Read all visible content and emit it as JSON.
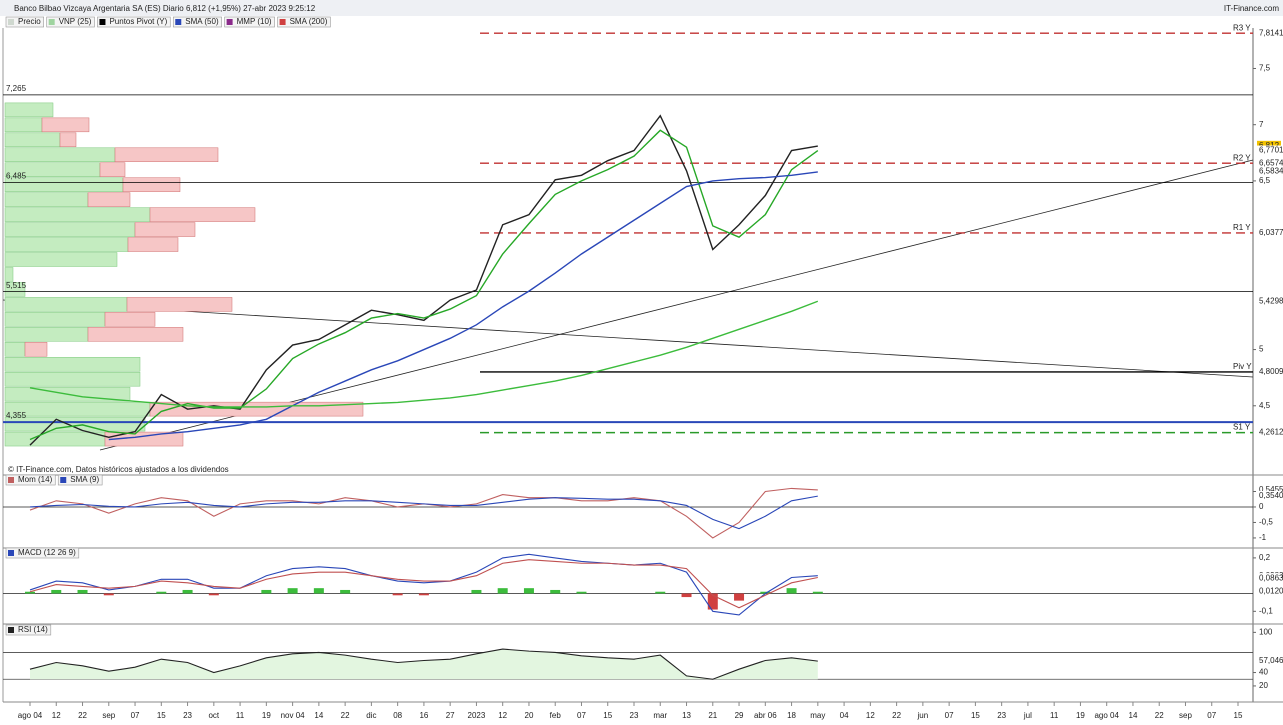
{
  "header": {
    "title": "Banco Bilbao Vizcaya Argentaria SA (ES) Diario 6,812 (+1,95%) 27-abr 2023 9:25:12",
    "brand": "IT-Finance.com",
    "note": "© IT-Finance.com, Datos históricos ajustados a los dividendos"
  },
  "chart_data": [
    {
      "type": "line",
      "categories": [
        "ago 04",
        "12",
        "22",
        "sep",
        "07",
        "15",
        "23",
        "oct",
        "11",
        "19",
        "nov 04",
        "14",
        "22",
        "dic",
        "08",
        "16",
        "27",
        "2023",
        "12",
        "20",
        "feb",
        "07",
        "15",
        "23",
        "mar",
        "13",
        "21",
        "29",
        "abr 06",
        "18",
        "may",
        "04",
        "12",
        "22",
        "jun",
        "07",
        "15",
        "23",
        "jul",
        "11",
        "19",
        "ago 04",
        "14",
        "22",
        "sep",
        "07",
        "15"
      ],
      "legend": [
        {
          "name": "Precio",
          "color": "#cfd8cf"
        },
        {
          "name": "VNP (25)",
          "color": "#9fd49f"
        },
        {
          "name": "Puntos Pivot (Y)",
          "color": "#000000"
        },
        {
          "name": "SMA (50)",
          "color": "#2a47b8"
        },
        {
          "name": "MMP (10)",
          "color": "#8b2a8b"
        },
        {
          "name": "SMA (200)",
          "color": "#d04040"
        }
      ],
      "series": [
        {
          "color": "#222222",
          "values": [
            4.15,
            4.38,
            4.28,
            4.22,
            4.27,
            4.6,
            4.47,
            4.5,
            4.47,
            4.82,
            5.04,
            5.09,
            5.22,
            5.35,
            5.31,
            5.26,
            5.44,
            5.53,
            6.11,
            6.2,
            6.51,
            6.55,
            6.68,
            6.77,
            7.08,
            6.59,
            5.89,
            6.11,
            6.37,
            6.77,
            6.81,
            null,
            null,
            null,
            null,
            null,
            null,
            null,
            null,
            null,
            null,
            null,
            null,
            null,
            null,
            null,
            null
          ]
        },
        {
          "color": "#27a827",
          "values": [
            4.2,
            4.3,
            4.33,
            4.27,
            4.25,
            4.45,
            4.52,
            4.48,
            4.48,
            4.65,
            4.92,
            5.05,
            5.15,
            5.28,
            5.32,
            5.28,
            5.36,
            5.48,
            5.85,
            6.12,
            6.38,
            6.5,
            6.6,
            6.72,
            6.95,
            6.8,
            6.1,
            6.0,
            6.2,
            6.6,
            6.77,
            null,
            null,
            null,
            null,
            null,
            null,
            null,
            null,
            null,
            null,
            null,
            null,
            null,
            null,
            null,
            null
          ]
        },
        {
          "color": "#2a47b8",
          "values": [
            null,
            null,
            null,
            4.2,
            4.22,
            4.25,
            4.27,
            4.3,
            4.33,
            4.38,
            4.5,
            4.62,
            4.72,
            4.82,
            4.9,
            5.0,
            5.1,
            5.22,
            5.38,
            5.52,
            5.68,
            5.85,
            6.0,
            6.15,
            6.3,
            6.45,
            6.5,
            6.52,
            6.53,
            6.55,
            6.58,
            null,
            null,
            null,
            null,
            null,
            null,
            null,
            null,
            null,
            null,
            null,
            null,
            null,
            null,
            null,
            null
          ]
        },
        {
          "color": "#3cbc3c",
          "values": [
            4.66,
            4.62,
            4.58,
            4.56,
            4.54,
            4.52,
            4.5,
            4.49,
            4.49,
            4.49,
            4.5,
            4.5,
            4.51,
            4.52,
            4.53,
            4.55,
            4.57,
            4.6,
            4.64,
            4.68,
            4.72,
            4.77,
            4.83,
            4.89,
            4.95,
            5.02,
            5.1,
            5.18,
            5.26,
            5.34,
            5.43,
            null,
            null,
            null,
            null,
            null,
            null,
            null,
            null,
            null,
            null,
            null,
            null,
            null,
            null,
            null,
            null
          ]
        }
      ],
      "ylim": [
        4.0,
        7.86
      ],
      "yticks": [
        {
          "value": 7.5,
          "label": "7,5"
        },
        7,
        {
          "value": 6.5,
          "label": "6,5"
        },
        5,
        {
          "value": 4.5,
          "label": "4,5"
        }
      ],
      "hlines": [
        {
          "value": 7.265,
          "label": "7,265",
          "color": "#000000"
        },
        {
          "value": 6.485,
          "label": "6,485",
          "color": "#000000"
        },
        {
          "value": 5.515,
          "label": "5,515",
          "color": "#000000"
        },
        {
          "value": 4.355,
          "label": "4,355",
          "color": "#2a47b8"
        }
      ],
      "levels": [
        {
          "name": "R3 Y",
          "value": 7.8141,
          "label": "7,8141",
          "color": "#c03030",
          "dash": true
        },
        {
          "name": "R2 Y",
          "value": 6.6574,
          "label": "6,6574",
          "color": "#c03030",
          "dash": true
        },
        {
          "name": "R1 Y",
          "value": 6.0377,
          "label": "6,0377",
          "color": "#c03030",
          "dash": true
        },
        {
          "name": "Piv Y",
          "value": 4.8009,
          "label": "4,8009",
          "color": "#000000",
          "dash": false
        },
        {
          "name": "S1 Y",
          "value": 4.2612,
          "label": "4,2612",
          "color": "#2a9a2a",
          "dash": true
        }
      ],
      "last_labels": [
        {
          "value": 6.812,
          "label": "6,812",
          "color": "#000000",
          "bg": "#f2c200"
        },
        {
          "value": 6.7701,
          "label": "6,7701",
          "color": "#2a9a2a",
          "bg": "#ffffff"
        },
        {
          "value": 6.5834,
          "label": "6,5834",
          "color": "#2a47b8",
          "bg": "#ffffff"
        },
        {
          "value": 5.4298,
          "label": "5,4298",
          "color": "#2a9a2a",
          "bg": "#ffffff"
        }
      ],
      "volume_profile": {
        "green": [
          48,
          37,
          55,
          110,
          95,
          118,
          83,
          145,
          130,
          123,
          112,
          8,
          20,
          122,
          100,
          83,
          20,
          135,
          135,
          125,
          145,
          140,
          100,
          0
        ],
        "red": [
          0,
          47,
          16,
          103,
          25,
          57,
          42,
          105,
          60,
          50,
          0,
          0,
          0,
          105,
          50,
          95,
          22,
          0,
          0,
          0,
          213,
          0,
          78,
          0
        ]
      }
    },
    {
      "type": "line",
      "series": [
        {
          "name": "Mom (14)",
          "color": "#c06060",
          "values": [
            -0.1,
            0.2,
            0.1,
            -0.2,
            0.1,
            0.3,
            0.2,
            -0.3,
            0.1,
            0.2,
            0.2,
            0.1,
            0.3,
            0.2,
            0.0,
            0.1,
            0.0,
            0.1,
            0.4,
            0.3,
            0.3,
            0.2,
            0.2,
            0.3,
            0.2,
            -0.3,
            -1.0,
            -0.5,
            0.5,
            0.6,
            0.55,
            null,
            null,
            null,
            null,
            null,
            null,
            null,
            null,
            null,
            null,
            null,
            null,
            null,
            null,
            null,
            null
          ]
        },
        {
          "name": "SMA (9)",
          "color": "#2a47b8",
          "values": [
            0.0,
            0.05,
            0.08,
            0.02,
            0.0,
            0.1,
            0.15,
            0.05,
            0.0,
            0.1,
            0.15,
            0.15,
            0.2,
            0.2,
            0.15,
            0.1,
            0.05,
            0.05,
            0.15,
            0.25,
            0.3,
            0.28,
            0.25,
            0.25,
            0.2,
            0.05,
            -0.4,
            -0.7,
            -0.3,
            0.2,
            0.35,
            null,
            null,
            null,
            null,
            null,
            null,
            null,
            null,
            null,
            null,
            null,
            null,
            null,
            null,
            null,
            null
          ]
        }
      ],
      "ylim": [
        -1.26,
        1.0
      ],
      "yticks": [
        {
          "value": 0.5,
          "label": "0,5"
        },
        0,
        {
          "value": -0.5,
          "label": "-0,5"
        },
        -1
      ],
      "last_labels": [
        {
          "value": 0.5455,
          "label": "0,5455",
          "color": "#2a47b8",
          "bg": "#ffffff"
        },
        {
          "value": 0.354,
          "label": "0,3540",
          "color": "#000000",
          "bg": "#ffffff"
        }
      ]
    },
    {
      "type": "macd",
      "title": "MACD (12 26 9)",
      "histogram": [
        0.01,
        0.02,
        0.02,
        -0.01,
        0.0,
        0.01,
        0.02,
        -0.01,
        0.0,
        0.02,
        0.03,
        0.03,
        0.02,
        0.0,
        -0.01,
        -0.01,
        0.0,
        0.02,
        0.03,
        0.03,
        0.02,
        0.01,
        0.0,
        0.0,
        0.01,
        -0.02,
        -0.09,
        -0.04,
        0.01,
        0.03,
        0.01,
        null,
        null,
        null,
        null,
        null,
        null,
        null,
        null,
        null,
        null,
        null,
        null,
        null,
        null,
        null,
        null
      ],
      "series": [
        {
          "color": "#2a47b8",
          "values": [
            0.02,
            0.07,
            0.06,
            0.02,
            0.04,
            0.08,
            0.08,
            0.03,
            0.03,
            0.1,
            0.14,
            0.15,
            0.14,
            0.1,
            0.07,
            0.06,
            0.07,
            0.12,
            0.2,
            0.22,
            0.2,
            0.18,
            0.17,
            0.16,
            0.17,
            0.12,
            -0.1,
            -0.12,
            0.0,
            0.09,
            0.1,
            null,
            null,
            null,
            null,
            null,
            null,
            null,
            null,
            null,
            null,
            null,
            null,
            null,
            null,
            null,
            null
          ]
        },
        {
          "color": "#c05050",
          "values": [
            0.01,
            0.05,
            0.04,
            0.03,
            0.04,
            0.07,
            0.06,
            0.04,
            0.03,
            0.08,
            0.11,
            0.12,
            0.12,
            0.1,
            0.08,
            0.07,
            0.07,
            0.1,
            0.17,
            0.19,
            0.18,
            0.17,
            0.17,
            0.16,
            0.16,
            0.14,
            -0.01,
            -0.08,
            -0.01,
            0.06,
            0.09,
            null,
            null,
            null,
            null,
            null,
            null,
            null,
            null,
            null,
            null,
            null,
            null,
            null,
            null,
            null,
            null
          ]
        }
      ],
      "ylim": [
        -0.16,
        0.25
      ],
      "yticks": [
        {
          "value": 0.2,
          "label": "0,2"
        },
        {
          "value": -0.1,
          "label": "-0,1"
        }
      ],
      "last_labels": [
        {
          "value": 0.0983,
          "label": "0,0983",
          "color": "#2a47b8",
          "bg": "#ffffff"
        },
        {
          "value": 0.0863,
          "label": "0,0863",
          "color": "#c05050",
          "bg": "#ffffff"
        },
        {
          "value": 0.012,
          "label": "0,0120",
          "color": "#2a9a2a",
          "bg": "#ffffff"
        }
      ]
    },
    {
      "type": "line",
      "title": "RSI (14)",
      "series": [
        {
          "color": "#222222",
          "values": [
            45,
            55,
            50,
            42,
            48,
            60,
            55,
            40,
            50,
            62,
            68,
            70,
            66,
            60,
            55,
            58,
            60,
            68,
            75,
            72,
            70,
            65,
            62,
            60,
            66,
            35,
            30,
            45,
            58,
            62,
            57.046,
            null,
            null,
            null,
            null,
            null,
            null,
            null,
            null,
            null,
            null,
            null,
            null,
            null,
            null,
            null,
            null
          ]
        }
      ],
      "ylim": [
        -1,
        109.5
      ],
      "yticks": [
        100,
        40,
        20
      ],
      "bands": [
        70,
        30
      ],
      "last_labels": [
        {
          "value": 57.046,
          "label": "57,046",
          "color": "#000000",
          "bg": "#ffffff"
        }
      ]
    }
  ]
}
